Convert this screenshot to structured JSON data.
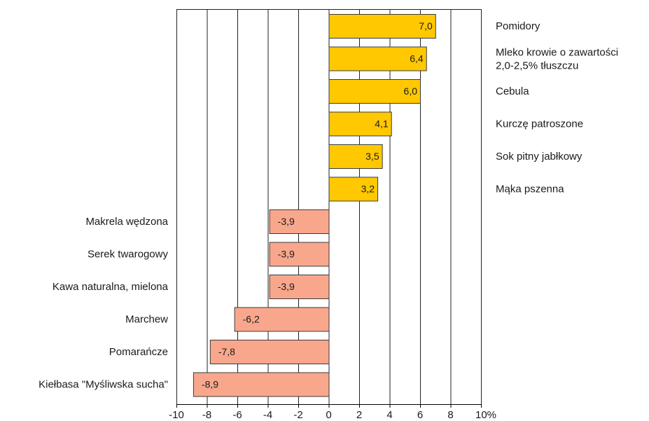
{
  "chart_data": {
    "type": "bar",
    "orientation": "horizontal",
    "categories": [
      [
        "Pomidory"
      ],
      [
        "Mleko krowie o zawartości",
        "2,0-2,5% tłuszczu"
      ],
      [
        "Cebula"
      ],
      [
        "Kurczę patroszone"
      ],
      [
        "Sok pitny jabłkowy"
      ],
      [
        "Mąka pszenna"
      ],
      [
        "Makrela wędzona"
      ],
      [
        "Serek twarogowy"
      ],
      [
        "Kawa naturalna, mielona"
      ],
      [
        "Marchew"
      ],
      [
        "Pomarańcze"
      ],
      [
        "Kiełbasa \"Myśliwska sucha\""
      ]
    ],
    "values": [
      7.0,
      6.4,
      6.0,
      4.1,
      3.5,
      3.2,
      -3.9,
      -3.9,
      -3.9,
      -6.2,
      -7.8,
      -8.9
    ],
    "value_labels": [
      "7,0",
      "6,4",
      "6,0",
      "4,1",
      "3,5",
      "3,2",
      "-3,9",
      "-3,9",
      "-3,9",
      "-6,2",
      "-7,8",
      "-8,9"
    ],
    "xlim": [
      -10,
      10
    ],
    "xticks": [
      -10,
      -8,
      -6,
      -4,
      -2,
      0,
      2,
      4,
      6,
      8,
      10
    ],
    "xtick_labels": [
      "-10",
      "-8",
      "-6",
      "-4",
      "-2",
      "0",
      "2",
      "4",
      "6",
      "8",
      "10%"
    ],
    "grid": true,
    "colors": {
      "positive": "#ffc800",
      "negative": "#f9a78c",
      "bar_edge": "#3a3a3a",
      "grid": "#222222",
      "axis": "#000000"
    }
  }
}
